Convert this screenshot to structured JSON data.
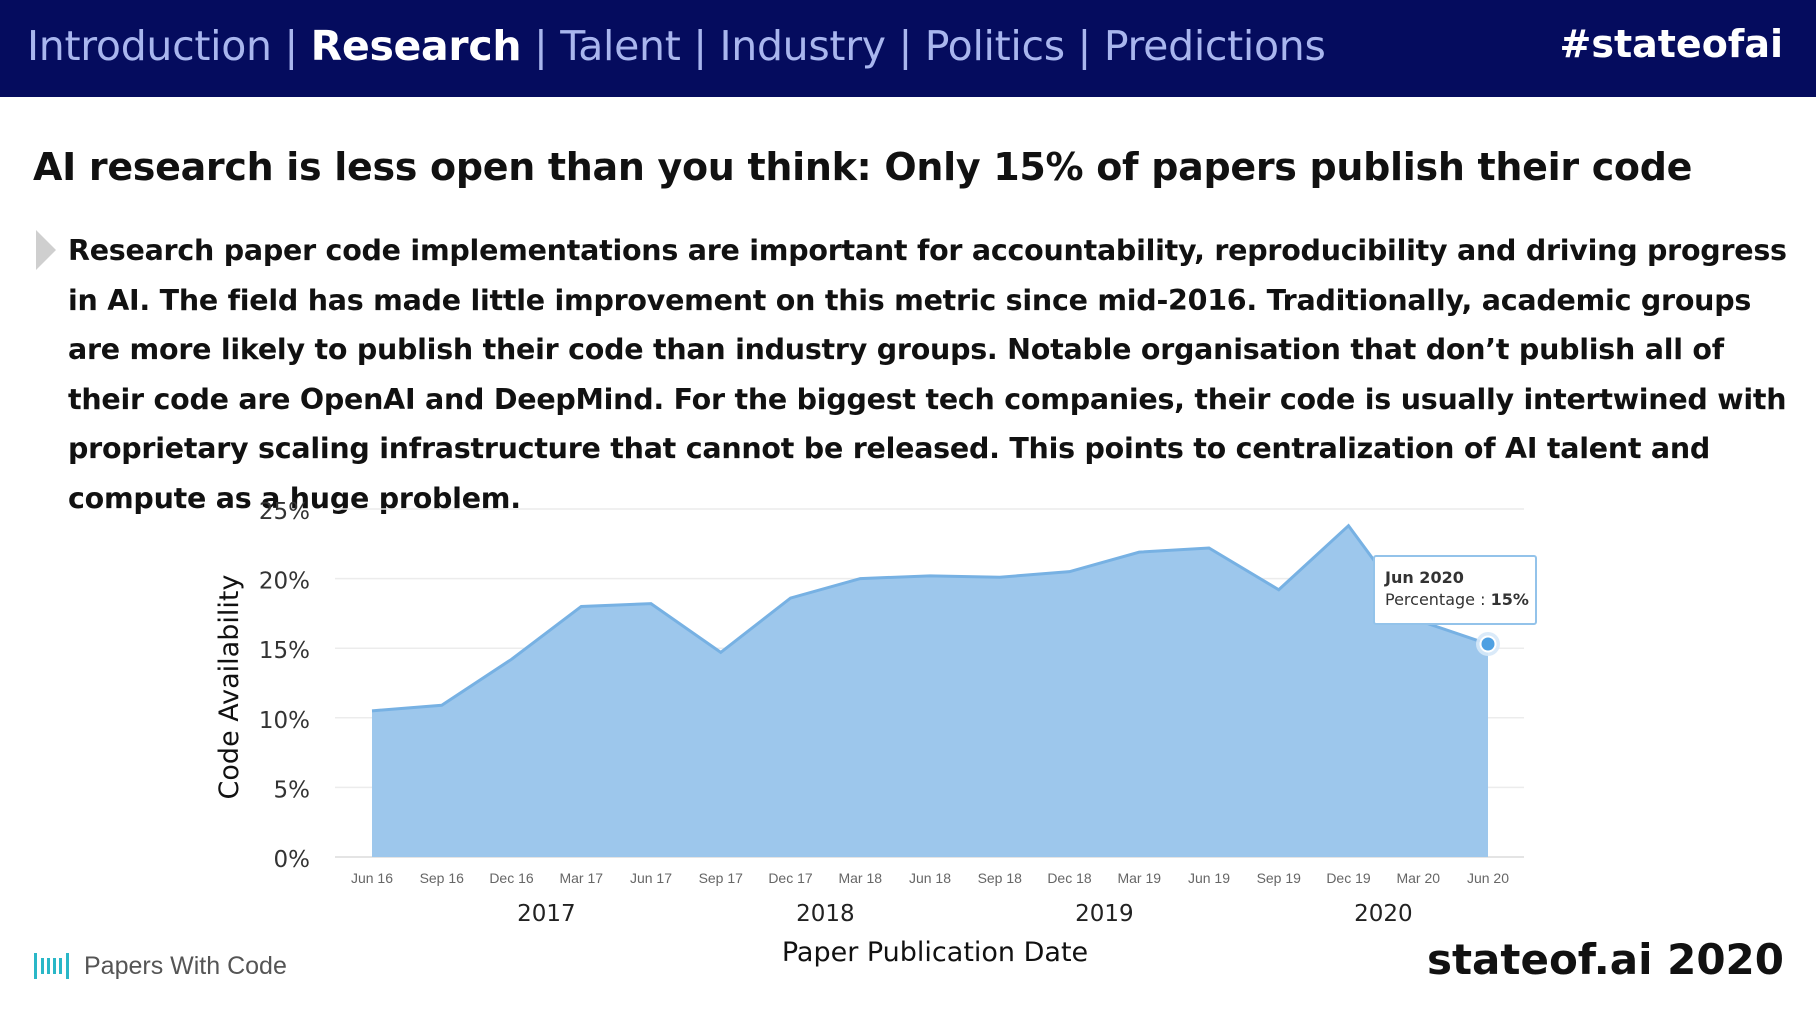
{
  "nav": {
    "items": [
      {
        "label": "Introduction",
        "active": false
      },
      {
        "label": "Research",
        "active": true
      },
      {
        "label": "Talent",
        "active": false
      },
      {
        "label": "Industry",
        "active": false
      },
      {
        "label": "Politics",
        "active": false
      },
      {
        "label": "Predictions",
        "active": false
      }
    ],
    "separator": " | ",
    "hashtag": "#stateofai"
  },
  "headline": "AI research is less open than you think: Only 15% of papers publish their code",
  "body": "Research paper code implementations are important for accountability, reproducibility and driving progress in AI. The field has made little improvement on this metric since mid-2016. Traditionally, academic groups are more likely to publish their code than industry groups. Notable organisation that don’t publish all of their code are OpenAI and DeepMind. For the biggest tech companies, their code is usually intertwined with proprietary scaling infrastructure that cannot be released. This points to centralization of AI talent and compute as a huge problem.",
  "chart_data": {
    "type": "area",
    "xlabel": "Paper Publication Date",
    "ylabel": "Code Availability",
    "categories": [
      "Jun 16",
      "Sep 16",
      "Dec 16",
      "Mar 17",
      "Jun 17",
      "Sep 17",
      "Dec 17",
      "Mar 18",
      "Jun 18",
      "Sep 18",
      "Dec 18",
      "Mar 19",
      "Jun 19",
      "Sep 19",
      "Dec 19",
      "Mar 20",
      "Jun 20"
    ],
    "values": [
      10.5,
      10.9,
      14.2,
      18.0,
      18.2,
      14.7,
      18.6,
      20.0,
      20.2,
      20.1,
      20.5,
      21.9,
      22.2,
      19.2,
      23.8,
      17.0,
      15.3
    ],
    "y_ticks": [
      "0%",
      "5%",
      "10%",
      "15%",
      "20%",
      "25%"
    ],
    "ylim": [
      0,
      25
    ],
    "year_labels": [
      {
        "label": "2017",
        "between": [
          "Dec 16",
          "Mar 17"
        ]
      },
      {
        "label": "2018",
        "between": [
          "Dec 17",
          "Mar 18"
        ]
      },
      {
        "label": "2019",
        "between": [
          "Dec 18",
          "Mar 19"
        ]
      },
      {
        "label": "2020",
        "between": [
          "Dec 19",
          "Mar 20"
        ]
      }
    ],
    "grid": true,
    "fill_color": "#9dc7ec",
    "line_color": "#77b1e3",
    "tooltip": {
      "category": "Jun 20",
      "title": "Jun 2020",
      "label": "Percentage : ",
      "value": "15%"
    }
  },
  "footer": {
    "source_logo_text": "Papers With Code",
    "brand": "stateof.ai 2020",
    "logo_color": "#2ab7c7"
  }
}
